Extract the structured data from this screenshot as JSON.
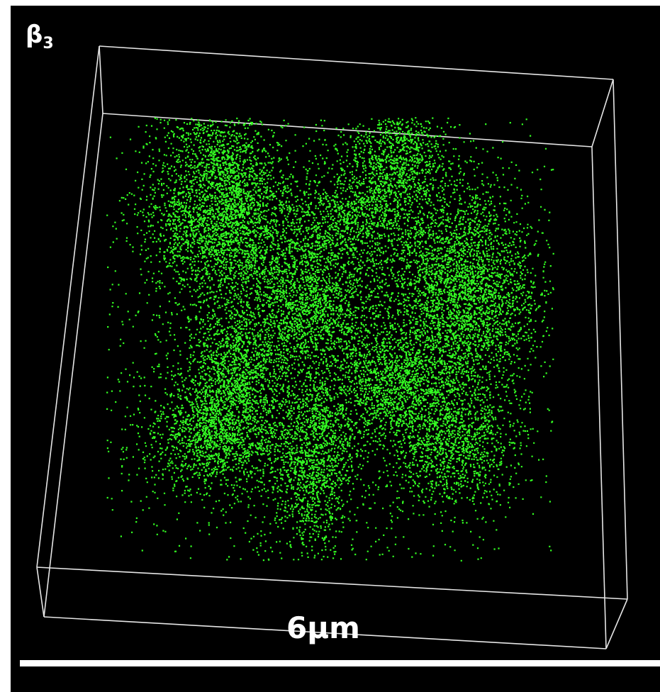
{
  "label": {
    "base": "β",
    "subscript": "3"
  },
  "scale_bar": {
    "label": "6μm"
  }
}
